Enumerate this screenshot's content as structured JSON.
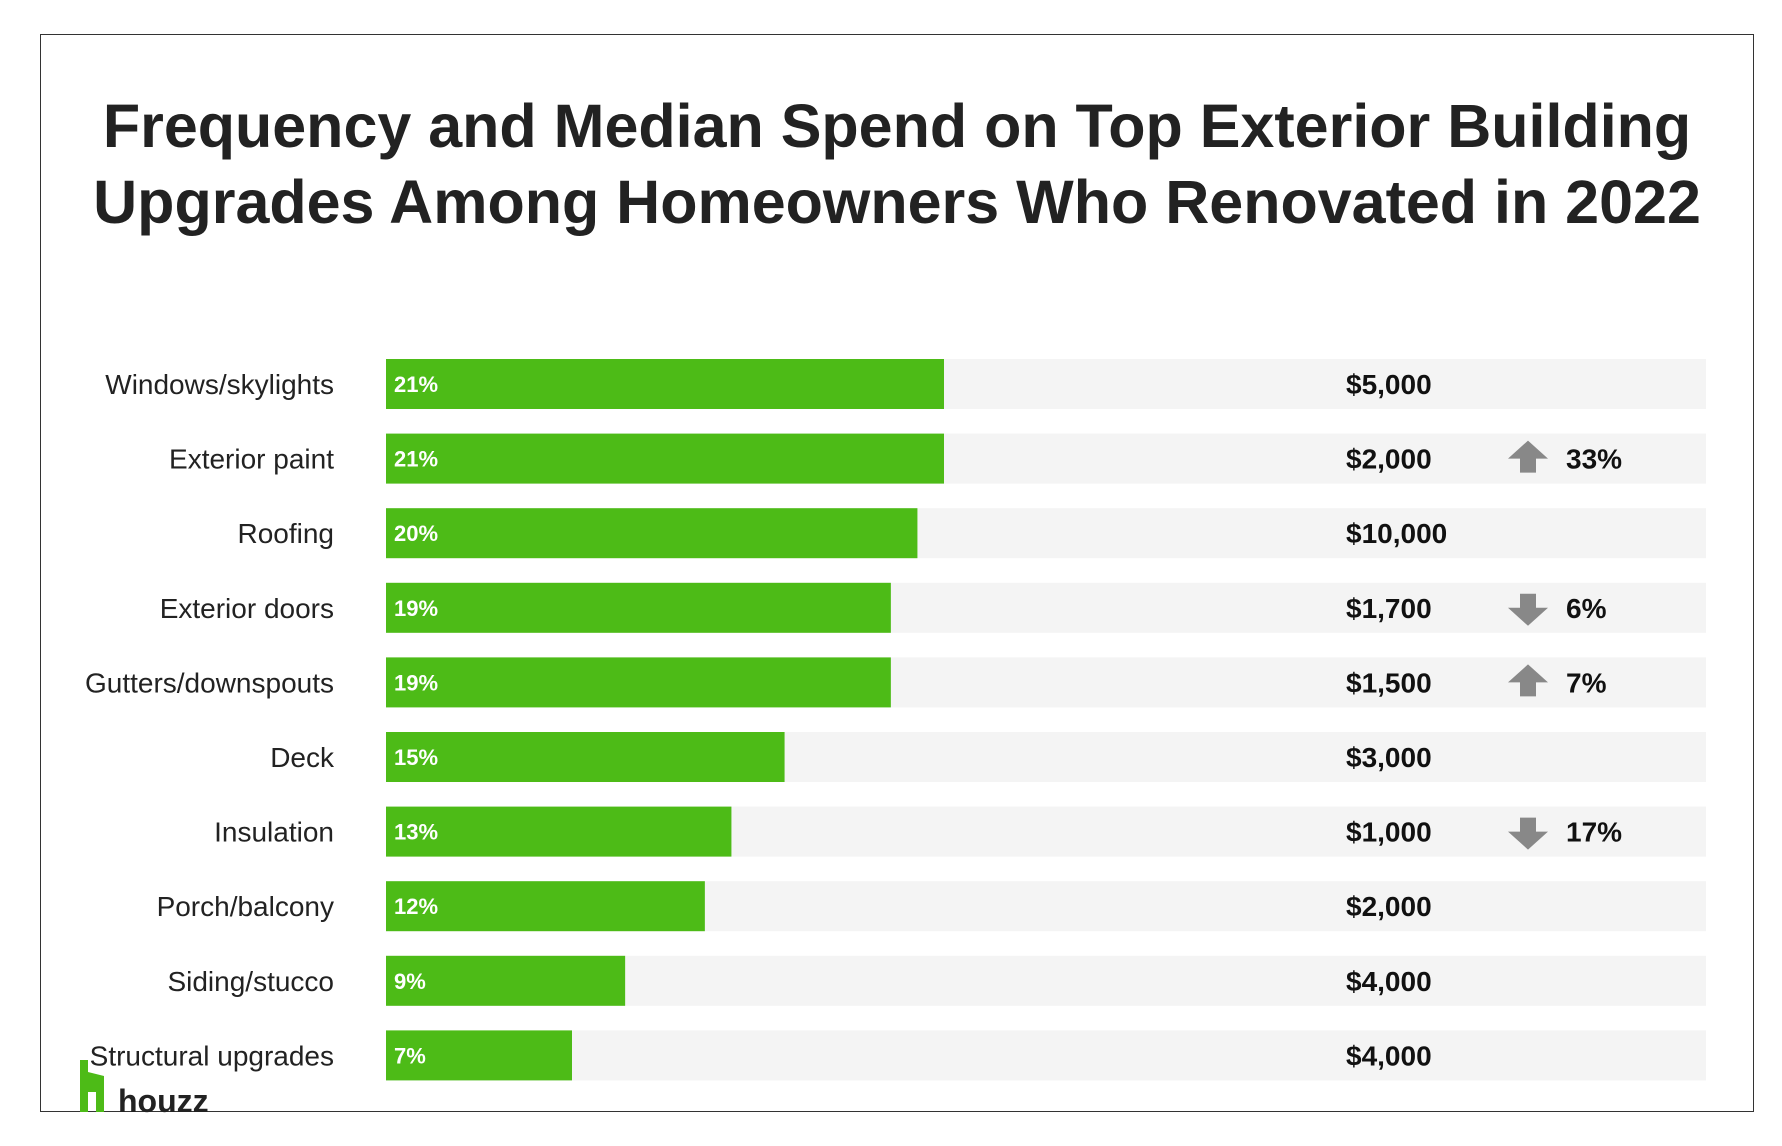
{
  "title_line1": "Frequency and Median Spend on Top Exterior Building",
  "title_line2": "Upgrades Among Homeowners Who Renovated in 2022",
  "brand": {
    "name": "houzz",
    "color": "#4dbb17"
  },
  "colors": {
    "bar": "#4dbb17",
    "track": "#f4f4f4",
    "arrow": "#888888"
  },
  "chart_data": {
    "type": "bar",
    "orientation": "horizontal",
    "categories": [
      "Windows/skylights",
      "Exterior paint",
      "Roofing",
      "Exterior doors",
      "Gutters/downspouts",
      "Deck",
      "Insulation",
      "Porch/balcony",
      "Siding/stucco",
      "Structural upgrades"
    ],
    "series": [
      {
        "values": [
          21,
          21,
          20,
          19,
          19,
          15,
          13,
          12,
          9,
          7
        ]
      }
    ],
    "value_labels": [
      "21%",
      "21%",
      "20%",
      "19%",
      "19%",
      "15%",
      "13%",
      "12%",
      "9%",
      "7%"
    ],
    "median_spend": [
      "$5,000",
      "$2,000",
      "$10,000",
      "$1,700",
      "$1,500",
      "$3,000",
      "$1,000",
      "$2,000",
      "$4,000",
      "$4,000"
    ],
    "spend_change": [
      null,
      {
        "direction": "up",
        "label": "33%"
      },
      null,
      {
        "direction": "down",
        "label": "6%"
      },
      {
        "direction": "up",
        "label": "7%"
      },
      null,
      {
        "direction": "down",
        "label": "17%"
      },
      null,
      null,
      null
    ],
    "xlim": [
      0,
      50
    ],
    "grid": false,
    "legend": "none"
  }
}
